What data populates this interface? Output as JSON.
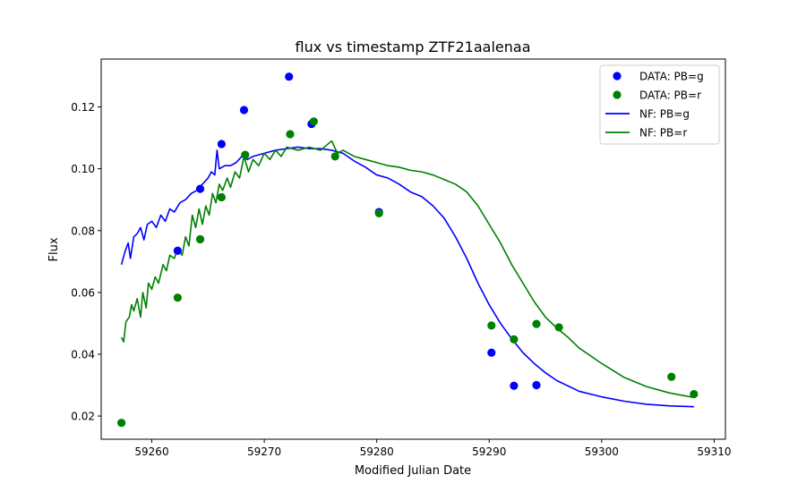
{
  "chart_data": {
    "type": "scatter",
    "title": "flux vs timestamp ZTF21aalenaa",
    "xlabel": "Modified Julian Date",
    "ylabel": "Flux",
    "xlim": [
      59255.5,
      59311
    ],
    "ylim": [
      0.0125,
      0.1355
    ],
    "x_ticks": [
      59260,
      59270,
      59280,
      59290,
      59300,
      59310
    ],
    "x_tick_labels": [
      "59260",
      "59270",
      "59280",
      "59290",
      "59300",
      "59310"
    ],
    "y_ticks": [
      0.02,
      0.04,
      0.06,
      0.08,
      0.1,
      0.12
    ],
    "y_tick_labels": [
      "0.02",
      "0.04",
      "0.06",
      "0.08",
      "0.10",
      "0.12"
    ],
    "grid": false,
    "legend_position": "top-right",
    "scatter_series": [
      {
        "name": "DATA: PB=g",
        "color": "#0000ff",
        "points": [
          [
            59262.3,
            0.0735
          ],
          [
            59264.3,
            0.0935
          ],
          [
            59266.2,
            0.108
          ],
          [
            59268.2,
            0.119
          ],
          [
            59272.2,
            0.1298
          ],
          [
            59274.2,
            0.1145
          ],
          [
            59280.2,
            0.086
          ],
          [
            59290.2,
            0.0405
          ],
          [
            59292.2,
            0.0298
          ],
          [
            59294.2,
            0.03
          ]
        ]
      },
      {
        "name": "DATA: PB=r",
        "color": "#008000",
        "points": [
          [
            59257.3,
            0.0178
          ],
          [
            59262.3,
            0.0583
          ],
          [
            59264.3,
            0.0772
          ],
          [
            59266.2,
            0.0908
          ],
          [
            59268.3,
            0.1045
          ],
          [
            59272.3,
            0.1112
          ],
          [
            59274.4,
            0.1153
          ],
          [
            59276.3,
            0.104
          ],
          [
            59280.2,
            0.0856
          ],
          [
            59290.2,
            0.0493
          ],
          [
            59292.2,
            0.0448
          ],
          [
            59294.2,
            0.0498
          ],
          [
            59296.2,
            0.0487
          ],
          [
            59306.2,
            0.0327
          ],
          [
            59308.2,
            0.0271
          ]
        ]
      }
    ],
    "line_series": [
      {
        "name": "NF: PB=g",
        "color": "#0000ff",
        "points": [
          [
            59257.3,
            0.069
          ],
          [
            59257.6,
            0.073
          ],
          [
            59257.9,
            0.076
          ],
          [
            59258.1,
            0.071
          ],
          [
            59258.4,
            0.078
          ],
          [
            59258.7,
            0.079
          ],
          [
            59259.0,
            0.081
          ],
          [
            59259.3,
            0.077
          ],
          [
            59259.6,
            0.082
          ],
          [
            59260.0,
            0.083
          ],
          [
            59260.4,
            0.081
          ],
          [
            59260.8,
            0.085
          ],
          [
            59261.2,
            0.083
          ],
          [
            59261.6,
            0.087
          ],
          [
            59262.0,
            0.086
          ],
          [
            59262.5,
            0.089
          ],
          [
            59263.0,
            0.09
          ],
          [
            59263.5,
            0.092
          ],
          [
            59264.0,
            0.093
          ],
          [
            59264.5,
            0.095
          ],
          [
            59265.0,
            0.097
          ],
          [
            59265.3,
            0.099
          ],
          [
            59265.6,
            0.098
          ],
          [
            59265.8,
            0.106
          ],
          [
            59266.0,
            0.1
          ],
          [
            59266.5,
            0.101
          ],
          [
            59267.0,
            0.101
          ],
          [
            59267.5,
            0.102
          ],
          [
            59268.0,
            0.104
          ],
          [
            59268.5,
            0.103
          ],
          [
            59269.0,
            0.104
          ],
          [
            59269.5,
            0.1045
          ],
          [
            59270.0,
            0.105
          ],
          [
            59271.0,
            0.106
          ],
          [
            59272.0,
            0.1065
          ],
          [
            59273.0,
            0.107
          ],
          [
            59274.0,
            0.1065
          ],
          [
            59275.0,
            0.1065
          ],
          [
            59276.0,
            0.106
          ],
          [
            59277.0,
            0.105
          ],
          [
            59278.0,
            0.1025
          ],
          [
            59279.0,
            0.1005
          ],
          [
            59280.0,
            0.098
          ],
          [
            59281.0,
            0.097
          ],
          [
            59282.0,
            0.095
          ],
          [
            59283.0,
            0.0925
          ],
          [
            59284.0,
            0.091
          ],
          [
            59285.0,
            0.088
          ],
          [
            59286.0,
            0.084
          ],
          [
            59287.0,
            0.078
          ],
          [
            59288.0,
            0.071
          ],
          [
            59289.0,
            0.063
          ],
          [
            59290.0,
            0.056
          ],
          [
            59291.0,
            0.05
          ],
          [
            59292.0,
            0.045
          ],
          [
            59293.0,
            0.0405
          ],
          [
            59294.0,
            0.037
          ],
          [
            59295.0,
            0.034
          ],
          [
            59296.0,
            0.0315
          ],
          [
            59298.0,
            0.028
          ],
          [
            59300.0,
            0.0262
          ],
          [
            59302.0,
            0.0248
          ],
          [
            59304.0,
            0.0238
          ],
          [
            59306.0,
            0.0233
          ],
          [
            59308.2,
            0.023
          ]
        ]
      },
      {
        "name": "NF: PB=r",
        "color": "#008000",
        "points": [
          [
            59257.3,
            0.0455
          ],
          [
            59257.5,
            0.044
          ],
          [
            59257.7,
            0.0505
          ],
          [
            59258.0,
            0.052
          ],
          [
            59258.2,
            0.056
          ],
          [
            59258.4,
            0.054
          ],
          [
            59258.7,
            0.058
          ],
          [
            59259.0,
            0.052
          ],
          [
            59259.2,
            0.06
          ],
          [
            59259.5,
            0.055
          ],
          [
            59259.7,
            0.063
          ],
          [
            59260.0,
            0.061
          ],
          [
            59260.3,
            0.065
          ],
          [
            59260.6,
            0.063
          ],
          [
            59261.0,
            0.069
          ],
          [
            59261.3,
            0.067
          ],
          [
            59261.6,
            0.072
          ],
          [
            59262.0,
            0.071
          ],
          [
            59262.3,
            0.074
          ],
          [
            59262.7,
            0.072
          ],
          [
            59263.0,
            0.078
          ],
          [
            59263.3,
            0.075
          ],
          [
            59263.6,
            0.085
          ],
          [
            59263.9,
            0.081
          ],
          [
            59264.2,
            0.087
          ],
          [
            59264.5,
            0.082
          ],
          [
            59264.8,
            0.088
          ],
          [
            59265.1,
            0.085
          ],
          [
            59265.4,
            0.092
          ],
          [
            59265.7,
            0.089
          ],
          [
            59266.0,
            0.095
          ],
          [
            59266.3,
            0.093
          ],
          [
            59266.7,
            0.097
          ],
          [
            59267.0,
            0.094
          ],
          [
            59267.4,
            0.099
          ],
          [
            59267.8,
            0.097
          ],
          [
            59268.2,
            0.104
          ],
          [
            59268.6,
            0.099
          ],
          [
            59269.0,
            0.103
          ],
          [
            59269.5,
            0.101
          ],
          [
            59270.0,
            0.105
          ],
          [
            59270.5,
            0.103
          ],
          [
            59271.0,
            0.106
          ],
          [
            59271.5,
            0.104
          ],
          [
            59272.0,
            0.107
          ],
          [
            59273.0,
            0.106
          ],
          [
            59274.0,
            0.107
          ],
          [
            59275.0,
            0.106
          ],
          [
            59276.0,
            0.109
          ],
          [
            59276.5,
            0.105
          ],
          [
            59277.0,
            0.106
          ],
          [
            59278.0,
            0.104
          ],
          [
            59279.0,
            0.103
          ],
          [
            59280.0,
            0.102
          ],
          [
            59281.0,
            0.101
          ],
          [
            59282.0,
            0.1005
          ],
          [
            59283.0,
            0.0995
          ],
          [
            59284.0,
            0.099
          ],
          [
            59285.0,
            0.098
          ],
          [
            59286.0,
            0.0965
          ],
          [
            59287.0,
            0.095
          ],
          [
            59288.0,
            0.0925
          ],
          [
            59289.0,
            0.088
          ],
          [
            59290.0,
            0.082
          ],
          [
            59291.0,
            0.076
          ],
          [
            59292.0,
            0.069
          ],
          [
            59293.0,
            0.063
          ],
          [
            59294.0,
            0.057
          ],
          [
            59295.0,
            0.052
          ],
          [
            59296.0,
            0.0485
          ],
          [
            59297.0,
            0.0455
          ],
          [
            59298.0,
            0.042
          ],
          [
            59300.0,
            0.037
          ],
          [
            59302.0,
            0.0325
          ],
          [
            59304.0,
            0.0295
          ],
          [
            59306.0,
            0.0275
          ],
          [
            59308.2,
            0.026
          ]
        ]
      }
    ],
    "legend": [
      {
        "label": "DATA: PB=g",
        "color": "#0000ff",
        "kind": "marker"
      },
      {
        "label": "DATA: PB=r",
        "color": "#008000",
        "kind": "marker"
      },
      {
        "label": "NF: PB=g",
        "color": "#0000ff",
        "kind": "line"
      },
      {
        "label": "NF: PB=r",
        "color": "#008000",
        "kind": "line"
      }
    ]
  }
}
